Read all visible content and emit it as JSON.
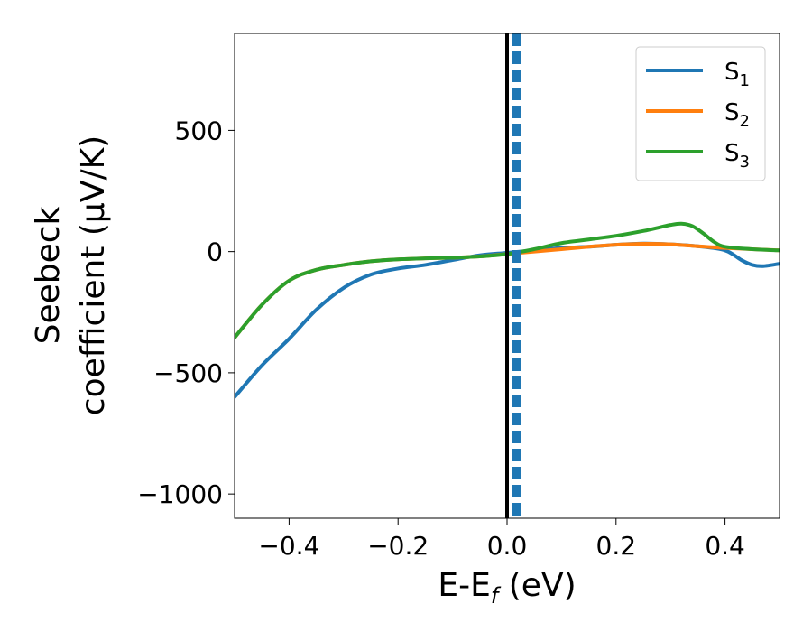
{
  "chart_data": {
    "type": "line",
    "title": "",
    "xlabel": "E-E",
    "xlabel_sub": "f",
    "xlabel_unit": " (eV)",
    "ylabel_line1": "Seebeck",
    "ylabel_line2": "coefficient  (μV/K)",
    "xlim": [
      -0.5,
      0.5
    ],
    "ylim": [
      -1100,
      900
    ],
    "xticks": [
      -0.4,
      -0.2,
      0.0,
      0.2,
      0.4
    ],
    "xtick_labels": [
      "−0.4",
      "−0.2",
      "0.0",
      "0.2",
      "0.4"
    ],
    "yticks": [
      -1000,
      -500,
      0,
      500
    ],
    "ytick_labels": [
      "−1000",
      "−500",
      "0",
      "500"
    ],
    "grid": false,
    "legend_position": "top-right",
    "vlines": [
      {
        "x": 0.0,
        "color": "#000000",
        "style": "solid"
      },
      {
        "x": 0.018,
        "color": "#1f77b4",
        "style": "dashed"
      }
    ],
    "series": [
      {
        "name": "S",
        "name_sub": "1",
        "color": "#1f77b4",
        "x": [
          -0.5,
          -0.45,
          -0.4,
          -0.35,
          -0.3,
          -0.25,
          -0.2,
          -0.15,
          -0.1,
          -0.05,
          0.0,
          0.05,
          0.1,
          0.15,
          0.2,
          0.25,
          0.3,
          0.35,
          0.4,
          0.43,
          0.45,
          0.47,
          0.5
        ],
        "y": [
          -600,
          -470,
          -360,
          -240,
          -150,
          -95,
          -70,
          -55,
          -35,
          -15,
          -5,
          5,
          15,
          20,
          28,
          33,
          30,
          22,
          5,
          -35,
          -55,
          -60,
          -50
        ]
      },
      {
        "name": "S",
        "name_sub": "2",
        "color": "#ff7f0e",
        "x": [
          -0.5,
          -0.45,
          -0.4,
          -0.35,
          -0.3,
          -0.25,
          -0.2,
          -0.15,
          -0.1,
          -0.05,
          0.0,
          0.05,
          0.1,
          0.15,
          0.2,
          0.25,
          0.3,
          0.35,
          0.4,
          0.45,
          0.5
        ],
        "y": [
          -355,
          -220,
          -120,
          -75,
          -55,
          -40,
          -32,
          -28,
          -25,
          -20,
          -10,
          0,
          10,
          20,
          28,
          32,
          30,
          22,
          15,
          10,
          5
        ]
      },
      {
        "name": "S",
        "name_sub": "3",
        "color": "#2ca02c",
        "x": [
          -0.5,
          -0.45,
          -0.4,
          -0.35,
          -0.3,
          -0.25,
          -0.2,
          -0.15,
          -0.1,
          -0.05,
          0.0,
          0.05,
          0.1,
          0.15,
          0.2,
          0.25,
          0.28,
          0.3,
          0.32,
          0.34,
          0.36,
          0.38,
          0.4,
          0.45,
          0.5
        ],
        "y": [
          -355,
          -220,
          -120,
          -75,
          -55,
          -40,
          -32,
          -28,
          -25,
          -20,
          -10,
          10,
          35,
          50,
          65,
          85,
          100,
          110,
          115,
          105,
          75,
          40,
          20,
          10,
          5
        ]
      }
    ]
  }
}
